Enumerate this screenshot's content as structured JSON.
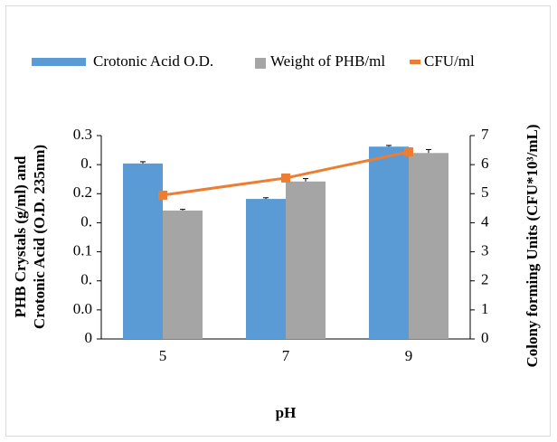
{
  "chart_data": {
    "type": "bar",
    "categories": [
      "5",
      "7",
      "9"
    ],
    "series": [
      {
        "name": "Crotonic Acid O.D.",
        "color": "#5b9bd5",
        "values": [
          0.302,
          0.241,
          0.331
        ],
        "errors": [
          0.003,
          0.002,
          0.002
        ],
        "axis": "y"
      },
      {
        "name": "Weight of PHB/ml",
        "color": "#a5a5a5",
        "values": [
          0.221,
          0.271,
          0.32
        ],
        "errors": [
          0.002,
          0.005,
          0.006
        ],
        "axis": "y"
      },
      {
        "name": "CFU/ml",
        "color": "#ed7d31",
        "values": [
          4.95,
          5.54,
          6.44
        ],
        "axis": "y2",
        "type": "line"
      }
    ],
    "ylim": [
      0,
      0.35
    ],
    "yticks": [
      0,
      {
        "value": 0.05,
        "label": "0.0"
      },
      {
        "value": 0.1,
        "label": "0."
      },
      {
        "value": 0.15,
        "label": "0.1"
      },
      {
        "value": 0.2,
        "label": "0."
      },
      {
        "value": 0.25,
        "label": "0.2"
      },
      {
        "value": 0.3,
        "label": "0."
      },
      {
        "value": 0.35,
        "label": "0.3"
      }
    ],
    "y2lim": [
      0,
      7
    ],
    "y2ticks": [
      0,
      1,
      2,
      3,
      4,
      5,
      6,
      7
    ],
    "x_label": "pH",
    "y_label_lines": [
      "PHB Crystals (g/ml) and",
      "Crotonic Acid (O.D. 235nm)"
    ],
    "y2_label": "Colony forming Units (CFU*10³/mL)",
    "legend": "top"
  }
}
